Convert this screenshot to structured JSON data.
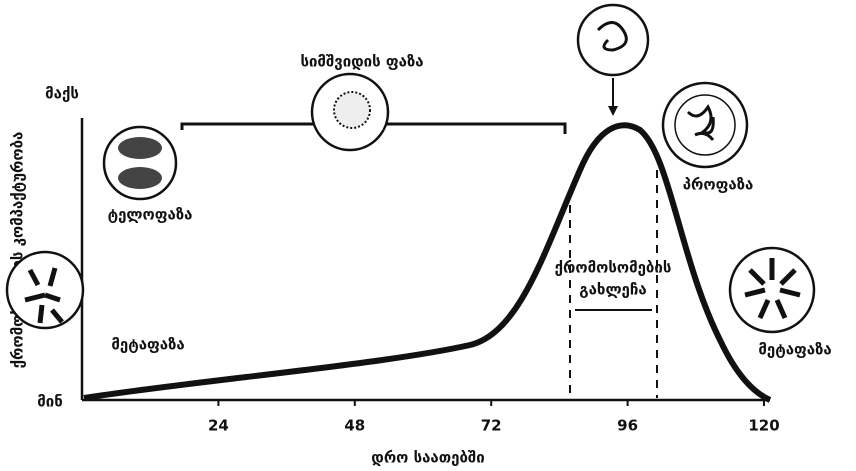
{
  "axis": {
    "y_max": "მაქს",
    "y_min": "მინ",
    "y_label": "ქრომოსომების კომპაქტურობა",
    "x_label": "დრო საათებში",
    "xlim": [
      0,
      120
    ],
    "xticks": [
      24,
      48,
      72,
      96,
      120
    ]
  },
  "labels": {
    "interphase": "სიმშვიდის ფაზა",
    "telophase": "ტელოფაზა",
    "metaphase_left": "მეტაფაზა",
    "prophase": "პროფაზა",
    "metaphase_right": "მეტაფაზა",
    "splitting_1": "ქრომოსომების",
    "splitting_2": "გახლეჩა"
  }
}
